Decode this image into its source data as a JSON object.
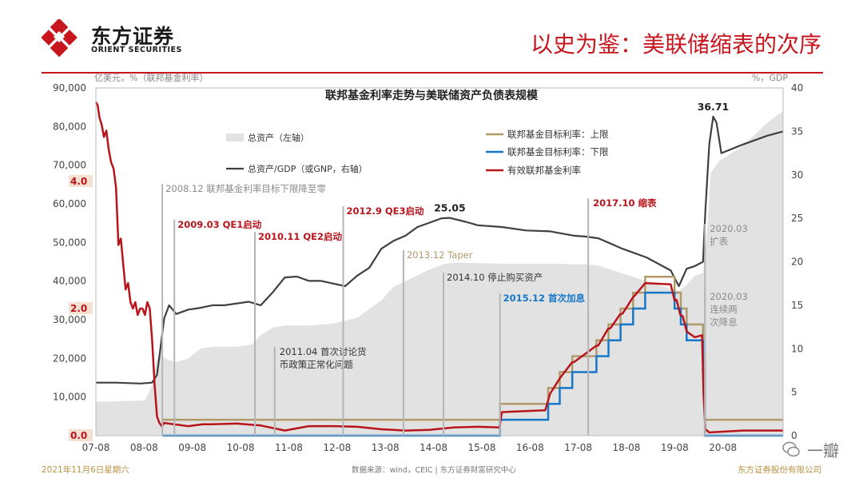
{
  "header": {
    "logo_cn": "东方证券",
    "logo_en": "ORIENT SECURITIES",
    "slide_title": "以史为鉴：美联储缩表的次序"
  },
  "colors": {
    "brand_red": "#c8161e",
    "area": "#e2e2e2",
    "ratio_line": "#404040",
    "upper": "#b09a6a",
    "lower": "#1677c9",
    "effective": "#b8141c"
  },
  "chart_data": {
    "type": "line",
    "title": "联邦基金利率走势与美联储资产负债表规模",
    "left_axis_unit": "亿美元，%（联邦基金利率）",
    "right_axis_unit": "%，GDP",
    "yleft_ticks": [
      "0.0",
      "10,000",
      "20,000",
      "30,000",
      "40,000",
      "50,000",
      "60,000",
      "70,000",
      "80,000",
      "90,000"
    ],
    "yleft_range": [
      0,
      90000
    ],
    "yright_ticks": [
      "0",
      "5",
      "10",
      "15",
      "20",
      "25",
      "30",
      "35",
      "40"
    ],
    "yright_range": [
      0,
      40
    ],
    "rate_ticks": [
      "4.0",
      "2.0",
      "0.0"
    ],
    "x_ticks": [
      "07-08",
      "08-08",
      "09-08",
      "10-08",
      "11-08",
      "12-08",
      "13-08",
      "14-08",
      "15-08",
      "16-08",
      "17-08",
      "18-08",
      "19-08",
      "20-08"
    ],
    "x_range": [
      2007.583,
      2021.83
    ],
    "grid": false,
    "legend_position": "top-left and top-center",
    "legend": {
      "assets": "总资产（左轴）",
      "ratio": "总资产/GDP（或GNP，右轴）",
      "upper": "联邦基金目标利率：上限",
      "lower": "联邦基金目标利率：下限",
      "effective": "有效联邦基金利率"
    },
    "series": [
      {
        "name": "总资产（左轴）",
        "axis": "left",
        "kind": "area",
        "x": [
          2007.583,
          2008.0,
          2008.6,
          2008.75,
          2008.83,
          2008.92,
          2009.0,
          2009.25,
          2009.5,
          2009.75,
          2010.0,
          2010.5,
          2010.8,
          2011.0,
          2011.25,
          2011.5,
          2012.0,
          2012.5,
          2013.0,
          2013.5,
          2013.75,
          2014.0,
          2014.5,
          2014.83,
          2015.0,
          2016.0,
          2017.0,
          2017.75,
          2018.0,
          2018.5,
          2019.0,
          2019.5,
          2019.67,
          2019.83,
          2020.0,
          2020.17,
          2020.25,
          2020.33,
          2020.5,
          2021.0,
          2021.5,
          2021.83
        ],
        "y": [
          8800,
          8900,
          9100,
          13000,
          19000,
          22000,
          20000,
          19000,
          20000,
          22500,
          23000,
          23000,
          23500,
          26000,
          28000,
          28500,
          28500,
          29000,
          30500,
          35000,
          38500,
          40000,
          43000,
          44500,
          44800,
          44500,
          44500,
          44300,
          44000,
          42000,
          40000,
          38000,
          37500,
          39000,
          41500,
          42000,
          52000,
          68000,
          71000,
          75000,
          81000,
          84000
        ]
      },
      {
        "name": "总资产/GDP（或GNP，右轴）",
        "axis": "right",
        "kind": "line",
        "x": [
          2007.583,
          2008.0,
          2008.5,
          2008.75,
          2008.85,
          2008.92,
          2009.0,
          2009.1,
          2009.25,
          2009.5,
          2009.75,
          2010.0,
          2010.25,
          2010.5,
          2010.75,
          2011.0,
          2011.25,
          2011.5,
          2011.75,
          2012.0,
          2012.25,
          2012.5,
          2012.75,
          2013.0,
          2013.25,
          2013.5,
          2013.75,
          2014.0,
          2014.25,
          2014.5,
          2014.75,
          2014.92,
          2015.25,
          2015.5,
          2016.0,
          2016.5,
          2017.0,
          2017.5,
          2017.75,
          2018.0,
          2018.5,
          2019.0,
          2019.5,
          2019.67,
          2019.83,
          2020.0,
          2020.17,
          2020.22,
          2020.3,
          2020.38,
          2020.45,
          2020.55,
          2021.0,
          2021.5,
          2021.83
        ],
        "y": [
          6.1,
          6.1,
          6.0,
          6.1,
          7.0,
          10.0,
          13.5,
          15.0,
          14.0,
          14.5,
          14.7,
          15.0,
          15.0,
          15.2,
          15.4,
          15.0,
          16.5,
          18.2,
          18.3,
          17.8,
          17.8,
          17.5,
          17.2,
          18.4,
          19.3,
          21.5,
          22.4,
          23.0,
          24.0,
          24.5,
          25.0,
          25.05,
          24.6,
          24.2,
          24.0,
          23.6,
          23.5,
          23.0,
          22.9,
          22.7,
          21.5,
          20.5,
          19.0,
          17.2,
          19.2,
          19.5,
          20.0,
          26.0,
          33.5,
          36.71,
          36.0,
          32.5,
          33.5,
          34.5,
          35.0
        ]
      },
      {
        "name": "联邦基金目标利率：上限",
        "axis": "rate",
        "kind": "step",
        "x": [
          2008.96,
          2015.96,
          2016.96,
          2017.2,
          2017.46,
          2017.96,
          2018.21,
          2018.46,
          2018.72,
          2018.97,
          2019.58,
          2019.71,
          2019.83,
          2020.17,
          2020.21,
          2021.83
        ],
        "y": [
          0.25,
          0.5,
          0.75,
          1.0,
          1.25,
          1.5,
          1.75,
          2.0,
          2.25,
          2.5,
          2.25,
          2.0,
          1.75,
          1.25,
          0.25,
          0.25
        ]
      },
      {
        "name": "联邦基金目标利率：下限",
        "axis": "rate",
        "kind": "step",
        "x": [
          2008.96,
          2015.96,
          2016.96,
          2017.2,
          2017.46,
          2017.96,
          2018.21,
          2018.46,
          2018.72,
          2018.97,
          2019.58,
          2019.71,
          2019.83,
          2020.17,
          2020.21,
          2021.83
        ],
        "y": [
          0.0,
          0.25,
          0.5,
          0.75,
          1.0,
          1.25,
          1.5,
          1.75,
          2.0,
          2.25,
          2.0,
          1.75,
          1.5,
          1.0,
          0.0,
          0.0
        ]
      },
      {
        "name": "有效联邦基金利率",
        "axis": "rate",
        "kind": "line",
        "x": [
          2007.583,
          2007.62,
          2007.66,
          2007.7,
          2007.75,
          2007.8,
          2007.85,
          2007.9,
          2007.95,
          2008.0,
          2008.05,
          2008.1,
          2008.15,
          2008.2,
          2008.25,
          2008.3,
          2008.35,
          2008.4,
          2008.45,
          2008.5,
          2008.55,
          2008.6,
          2008.65,
          2008.7,
          2008.75,
          2008.8,
          2008.85,
          2008.9,
          2008.95,
          2009.0,
          2009.2,
          2009.5,
          2009.8,
          2010.0,
          2010.5,
          2011.0,
          2011.5,
          2012.0,
          2012.5,
          2013.0,
          2013.5,
          2014.0,
          2014.5,
          2015.0,
          2015.5,
          2015.95,
          2016.0,
          2016.9,
          2017.0,
          2017.2,
          2017.45,
          2017.5,
          2017.95,
          2018.0,
          2018.2,
          2018.25,
          2018.45,
          2018.5,
          2018.72,
          2018.75,
          2018.97,
          2019.0,
          2019.5,
          2019.58,
          2019.62,
          2019.7,
          2019.75,
          2019.83,
          2019.9,
          2020.0,
          2020.15,
          2020.18,
          2020.22,
          2020.3,
          2021.0,
          2021.5,
          2021.83
        ],
        "y": [
          5.25,
          5.2,
          5.0,
          4.9,
          4.7,
          4.8,
          4.5,
          4.3,
          4.2,
          3.9,
          3.0,
          3.1,
          2.7,
          2.3,
          2.4,
          2.1,
          2.0,
          2.1,
          1.9,
          2.0,
          2.0,
          1.9,
          2.1,
          2.0,
          1.5,
          0.8,
          0.3,
          0.2,
          0.15,
          0.2,
          0.18,
          0.15,
          0.18,
          0.18,
          0.19,
          0.16,
          0.08,
          0.15,
          0.15,
          0.14,
          0.1,
          0.08,
          0.09,
          0.13,
          0.14,
          0.13,
          0.37,
          0.4,
          0.66,
          0.9,
          1.15,
          1.16,
          1.41,
          1.42,
          1.68,
          1.69,
          1.91,
          1.92,
          2.18,
          2.2,
          2.4,
          2.4,
          2.38,
          2.13,
          2.14,
          1.9,
          1.88,
          1.64,
          1.6,
          1.55,
          1.58,
          0.65,
          0.1,
          0.05,
          0.08,
          0.08,
          0.08
        ]
      }
    ],
    "annotations": [
      {
        "date": 2008.96,
        "text": "2008.12 联邦基金利率目标下限降至零",
        "color": "gray"
      },
      {
        "date": 2009.21,
        "text": "2009.03 QE1启动",
        "color": "red"
      },
      {
        "date": 2010.88,
        "text": "2010.11 QE2启动",
        "color": "red"
      },
      {
        "date": 2011.29,
        "text": "2011.04 首次讨论货币政策正常化问题",
        "lines": [
          "2011.04 首次讨论货",
          "币政策正常化问题"
        ],
        "color": "dark"
      },
      {
        "date": 2012.71,
        "text": "2012.9 QE3启动",
        "color": "red"
      },
      {
        "date": 2013.96,
        "text": "2013.12 Taper",
        "color": "gold"
      },
      {
        "date": 2014.79,
        "text": "2014.10 停止购买资产",
        "color": "dark"
      },
      {
        "date": 2015.96,
        "text": "2015.12 首次加息",
        "color": "blue"
      },
      {
        "date": 2017.79,
        "text": "2017.10 缩表",
        "color": "red"
      },
      {
        "date": 2020.21,
        "text": "2020.03 扩表",
        "lines": [
          "2020.03",
          "扩表"
        ],
        "color": "gray"
      },
      {
        "date": 2020.21,
        "text": "2020.03 连续两次降息",
        "lines": [
          "2020.03",
          "连续两",
          "次降息"
        ],
        "color": "gray"
      }
    ],
    "peak_labels": [
      {
        "x": 2014.92,
        "y": 25.05,
        "text": "25.05"
      },
      {
        "x": 2020.38,
        "y": 36.71,
        "text": "36.71"
      }
    ]
  },
  "footer": {
    "date": "2021年11月6日星期六",
    "source": "数据来源：wind，CEIC  |  东方证券财富研究中心",
    "company": "东方证券股份有限公司",
    "watermark": "一瓣"
  }
}
